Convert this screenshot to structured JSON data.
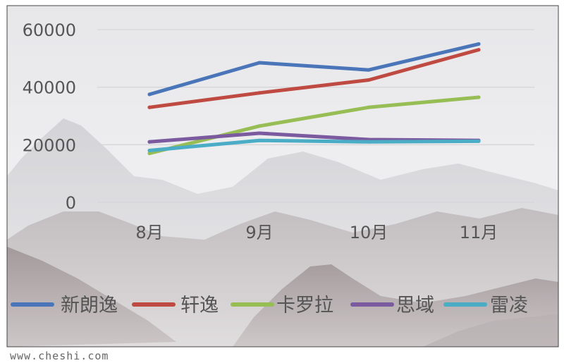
{
  "chart_data": {
    "type": "line",
    "categories": [
      "8月",
      "9月",
      "10月",
      "11月"
    ],
    "y_ticks": [
      "0",
      "20000",
      "40000",
      "60000"
    ],
    "ylim": [
      0,
      60000
    ],
    "grid": true,
    "legend_position": "bottom",
    "series": [
      {
        "name": "新朗逸",
        "color": "#4a76b9",
        "values": [
          37500,
          48500,
          46000,
          55000
        ]
      },
      {
        "name": "轩逸",
        "color": "#bf4a41",
        "values": [
          33000,
          38000,
          42500,
          53000
        ]
      },
      {
        "name": "卡罗拉",
        "color": "#97bd55",
        "values": [
          17000,
          26500,
          33000,
          36500
        ]
      },
      {
        "name": "思域",
        "color": "#7b5a9f",
        "values": [
          21000,
          24000,
          21800,
          21500
        ]
      },
      {
        "name": "雷凌",
        "color": "#4bacc6",
        "values": [
          18000,
          21500,
          21000,
          21200
        ]
      }
    ]
  },
  "watermark": "www.cheshi.com"
}
